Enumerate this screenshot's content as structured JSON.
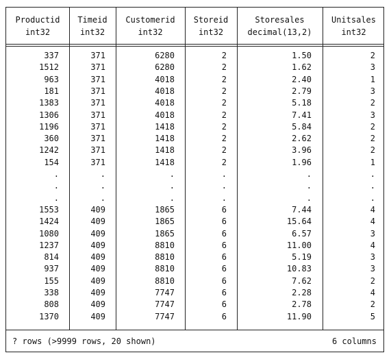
{
  "columns": [
    {
      "name": "Productid",
      "type": "int32"
    },
    {
      "name": "Timeid",
      "type": "int32"
    },
    {
      "name": "Customerid",
      "type": "int32"
    },
    {
      "name": "Storeid",
      "type": "int32"
    },
    {
      "name": "Storesales",
      "type": "decimal(13,2)"
    },
    {
      "name": "Unitsales",
      "type": "int32"
    }
  ],
  "rows": [
    [
      "337",
      "371",
      "6280",
      "2",
      "1.50",
      "2"
    ],
    [
      "1512",
      "371",
      "6280",
      "2",
      "1.62",
      "3"
    ],
    [
      "963",
      "371",
      "4018",
      "2",
      "2.40",
      "1"
    ],
    [
      "181",
      "371",
      "4018",
      "2",
      "2.79",
      "3"
    ],
    [
      "1383",
      "371",
      "4018",
      "2",
      "5.18",
      "2"
    ],
    [
      "1306",
      "371",
      "4018",
      "2",
      "7.41",
      "3"
    ],
    [
      "1196",
      "371",
      "1418",
      "2",
      "5.84",
      "2"
    ],
    [
      "360",
      "371",
      "1418",
      "2",
      "2.62",
      "2"
    ],
    [
      "1242",
      "371",
      "1418",
      "2",
      "3.96",
      "2"
    ],
    [
      "154",
      "371",
      "1418",
      "2",
      "1.96",
      "1"
    ],
    [
      ".",
      ".",
      ".",
      ".",
      ".",
      "."
    ],
    [
      ".",
      ".",
      ".",
      ".",
      ".",
      "."
    ],
    [
      ".",
      ".",
      ".",
      ".",
      ".",
      "."
    ],
    [
      "1553",
      "409",
      "1865",
      "6",
      "7.44",
      "4"
    ],
    [
      "1424",
      "409",
      "1865",
      "6",
      "15.64",
      "4"
    ],
    [
      "1080",
      "409",
      "1865",
      "6",
      "6.57",
      "3"
    ],
    [
      "1237",
      "409",
      "8810",
      "6",
      "11.00",
      "4"
    ],
    [
      "814",
      "409",
      "8810",
      "6",
      "5.19",
      "3"
    ],
    [
      "937",
      "409",
      "8810",
      "6",
      "10.83",
      "3"
    ],
    [
      "155",
      "409",
      "8810",
      "6",
      "7.62",
      "2"
    ],
    [
      "338",
      "409",
      "7747",
      "6",
      "2.28",
      "4"
    ],
    [
      "808",
      "409",
      "7747",
      "6",
      "2.78",
      "2"
    ],
    [
      "1370",
      "409",
      "7747",
      "6",
      "11.90",
      "5"
    ]
  ],
  "footer": {
    "rows_text": "? rows (>9999 rows, 20 shown)",
    "columns_text": "6 columns"
  }
}
